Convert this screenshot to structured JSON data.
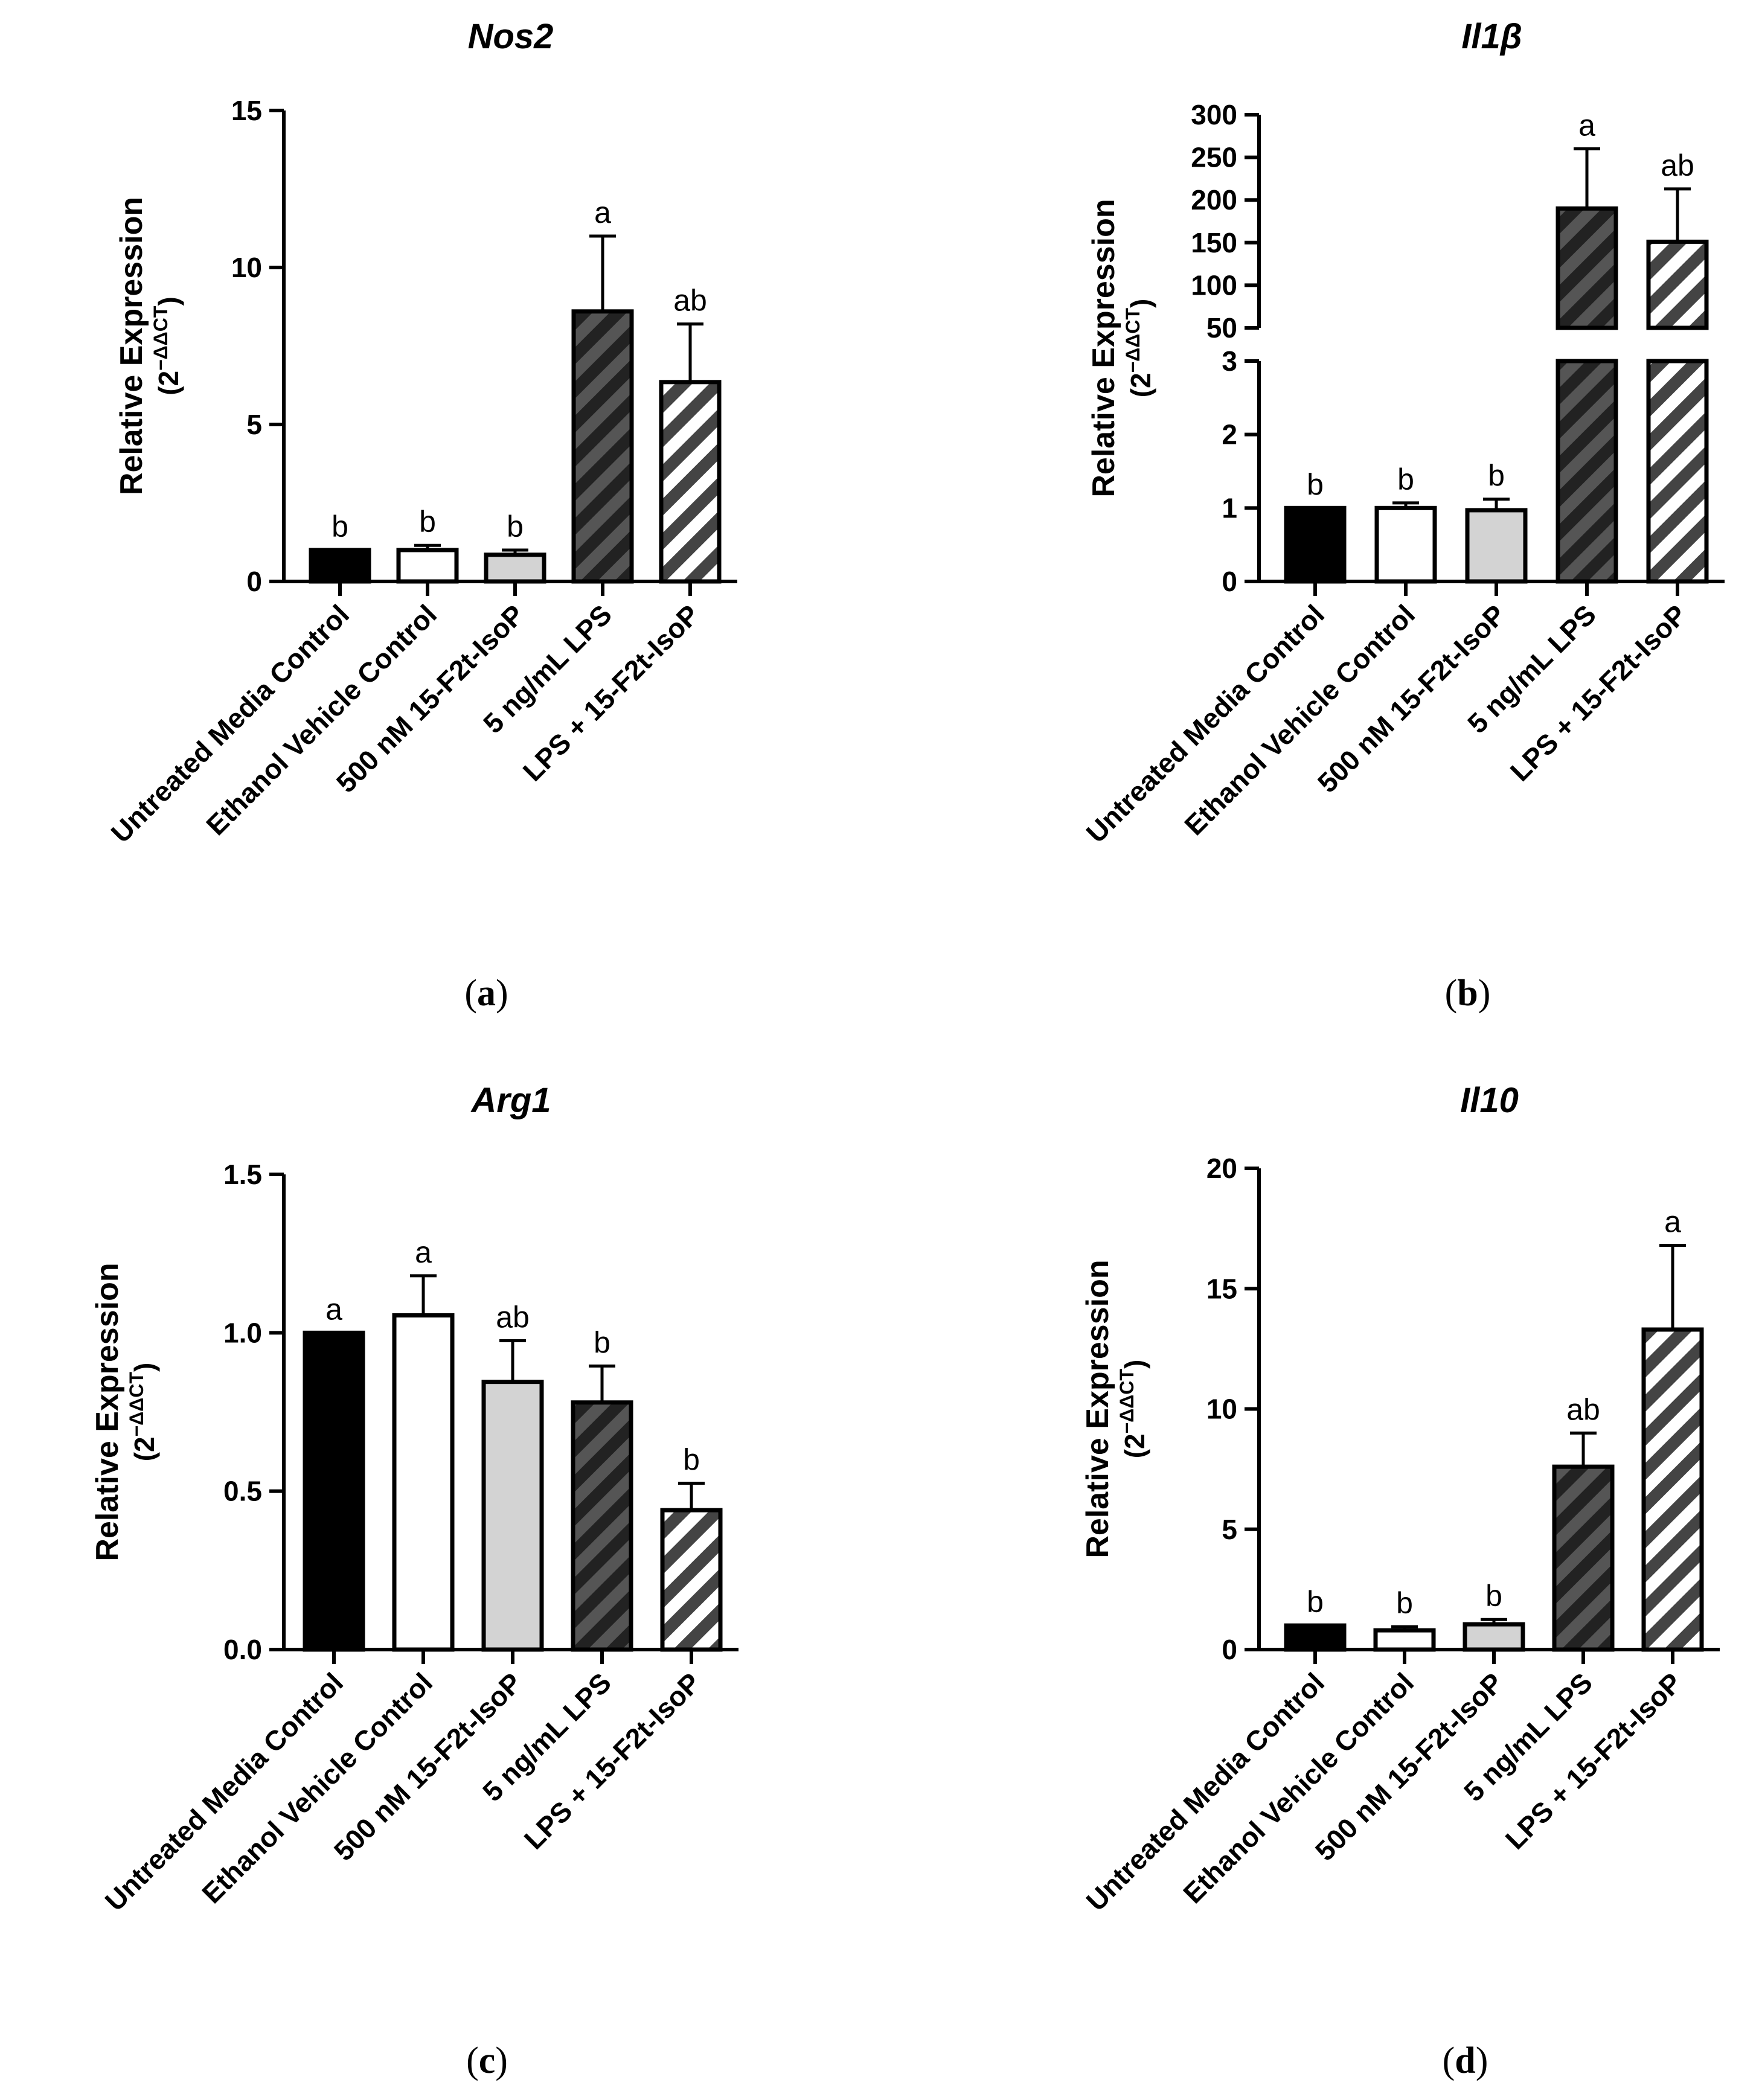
{
  "colors": {
    "untreated": "#000000",
    "ethanol": "#ffffff",
    "isop": "#d3d3d3",
    "lps_dark": "#555555",
    "lps_light": "#d9d9d9",
    "stroke": "#000000"
  },
  "chart_data": [
    {
      "type": "bar",
      "panel": "a",
      "title": "Nos2",
      "ylabel": "Relative Expression",
      "ylabel_formula": {
        "base": "(2",
        "exp": "−ΔΔCT",
        "close": ")"
      },
      "categories": [
        "Untreated Media Control",
        "Ethanol Vehicle Control",
        "500 nM 15-F2t-IsoP",
        "5 ng/mL LPS",
        "LPS + 15-F2t-IsoP"
      ],
      "values": [
        1.0,
        1.0,
        0.85,
        8.6,
        6.35
      ],
      "errors": [
        0,
        0.15,
        0.15,
        2.4,
        1.85
      ],
      "significance": [
        "b",
        "b",
        "b",
        "a",
        "ab"
      ],
      "ylim": [
        0,
        15
      ],
      "yticks": [
        0,
        5,
        10,
        15
      ],
      "ytick_labels": [
        "0",
        "5",
        "10",
        "15"
      ]
    },
    {
      "type": "bar",
      "panel": "b",
      "title": "Il1β",
      "ylabel": "Relative Expression",
      "ylabel_formula": {
        "base": "(2",
        "exp": "−ΔΔCT",
        "close": ")"
      },
      "categories": [
        "Untreated Media Control",
        "Ethanol Vehicle Control",
        "500 nM 15-F2t-IsoP",
        "5 ng/mL LPS",
        "LPS + 15-F2t-IsoP"
      ],
      "values": [
        1.0,
        1.0,
        0.97,
        190,
        151
      ],
      "errors": [
        0,
        0.07,
        0.15,
        70,
        62
      ],
      "significance": [
        "b",
        "b",
        "b",
        "a",
        "ab"
      ],
      "broken_axis": {
        "lower_ylim": [
          0,
          3
        ],
        "lower_ticks": [
          0,
          1,
          2,
          3
        ],
        "lower_tick_labels": [
          "0",
          "1",
          "2",
          "3"
        ],
        "upper_ylim": [
          50,
          300
        ],
        "upper_ticks": [
          50,
          100,
          150,
          200,
          250,
          300
        ],
        "upper_tick_labels": [
          "50",
          "100",
          "150",
          "200",
          "250",
          "300"
        ]
      }
    },
    {
      "type": "bar",
      "panel": "c",
      "title": "Arg1",
      "ylabel": "Relative Expression",
      "ylabel_formula": {
        "base": "(2",
        "exp": "−ΔΔCT",
        "close": ")"
      },
      "categories": [
        "Untreated Media Control",
        "Ethanol Vehicle Control",
        "500 nM 15-F2t-IsoP",
        "5 ng/mL LPS",
        "LPS + 15-F2t-IsoP"
      ],
      "values": [
        1.0,
        1.055,
        0.845,
        0.78,
        0.44
      ],
      "errors": [
        0,
        0.125,
        0.13,
        0.115,
        0.085
      ],
      "significance": [
        "a",
        "a",
        "ab",
        "b",
        "b"
      ],
      "ylim": [
        0,
        1.5
      ],
      "yticks": [
        0,
        0.5,
        1.0,
        1.5
      ],
      "ytick_labels": [
        "0.0",
        "0.5",
        "1.0",
        "1.5"
      ]
    },
    {
      "type": "bar",
      "panel": "d",
      "title": "Il10",
      "ylabel": "Relative Expression",
      "ylabel_formula": {
        "base": "(2",
        "exp": "−ΔΔCT",
        "close": ")"
      },
      "categories": [
        "Untreated Media Control",
        "Ethanol Vehicle Control",
        "500 nM 15-F2t-IsoP",
        "5 ng/mL LPS",
        "LPS + 15-F2t-IsoP"
      ],
      "values": [
        1.0,
        0.8,
        1.05,
        7.6,
        13.3
      ],
      "errors": [
        0,
        0.15,
        0.2,
        1.4,
        3.5
      ],
      "significance": [
        "b",
        "b",
        "b",
        "ab",
        "a"
      ],
      "ylim": [
        0,
        20
      ],
      "yticks": [
        0,
        5,
        10,
        15,
        20
      ],
      "ytick_labels": [
        "0",
        "5",
        "10",
        "15",
        "20"
      ]
    }
  ]
}
